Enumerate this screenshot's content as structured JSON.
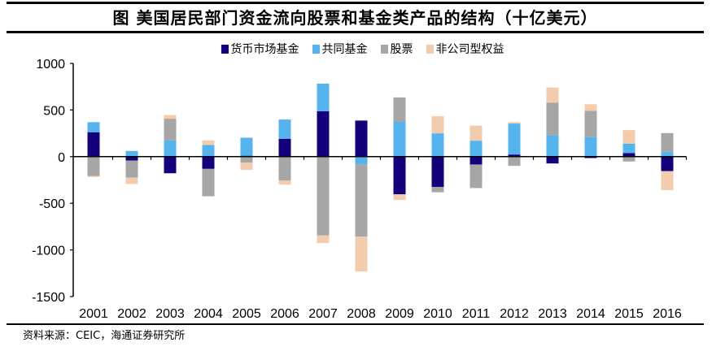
{
  "title": "图  美国居民部门资金流向股票和基金类产品的结构（十亿美元）",
  "source": "资料来源：CEIC，海通证券研究所",
  "chart_data": {
    "type": "bar",
    "stacked": true,
    "title": "图  美国居民部门资金流向股票和基金类产品的结构（十亿美元）",
    "xlabel": "",
    "ylabel": "",
    "ylim": [
      -1500,
      1000
    ],
    "yticks": [
      1000,
      500,
      0,
      -500,
      -1000,
      -1500
    ],
    "legend_position": "top-center",
    "grid": false,
    "categories": [
      "2001",
      "2002",
      "2003",
      "2004",
      "2005",
      "2006",
      "2007",
      "2008",
      "2009",
      "2010",
      "2011",
      "2012",
      "2013",
      "2014",
      "2015",
      "2016"
    ],
    "series": [
      {
        "name": "货币市场基金",
        "color": "#14007a",
        "values": [
          262,
          -41,
          -178,
          -131,
          10,
          192,
          486,
          387,
          -404,
          -326,
          -84,
          23,
          -73,
          -15,
          38,
          -155
        ]
      },
      {
        "name": "共同基金",
        "color": "#55b4ee",
        "values": [
          108,
          61,
          175,
          125,
          193,
          206,
          297,
          -81,
          373,
          250,
          171,
          332,
          232,
          210,
          102,
          52
        ]
      },
      {
        "name": "股票",
        "color": "#a6a6a6",
        "values": [
          -207,
          -183,
          232,
          -294,
          -63,
          -257,
          -845,
          -777,
          262,
          -56,
          -253,
          -99,
          347,
          282,
          -52,
          201
        ]
      },
      {
        "name": "非公司型权益",
        "color": "#f3ccad",
        "values": [
          -11,
          -68,
          38,
          50,
          -79,
          -43,
          -81,
          -373,
          -61,
          183,
          161,
          15,
          163,
          70,
          145,
          -203
        ]
      }
    ]
  }
}
